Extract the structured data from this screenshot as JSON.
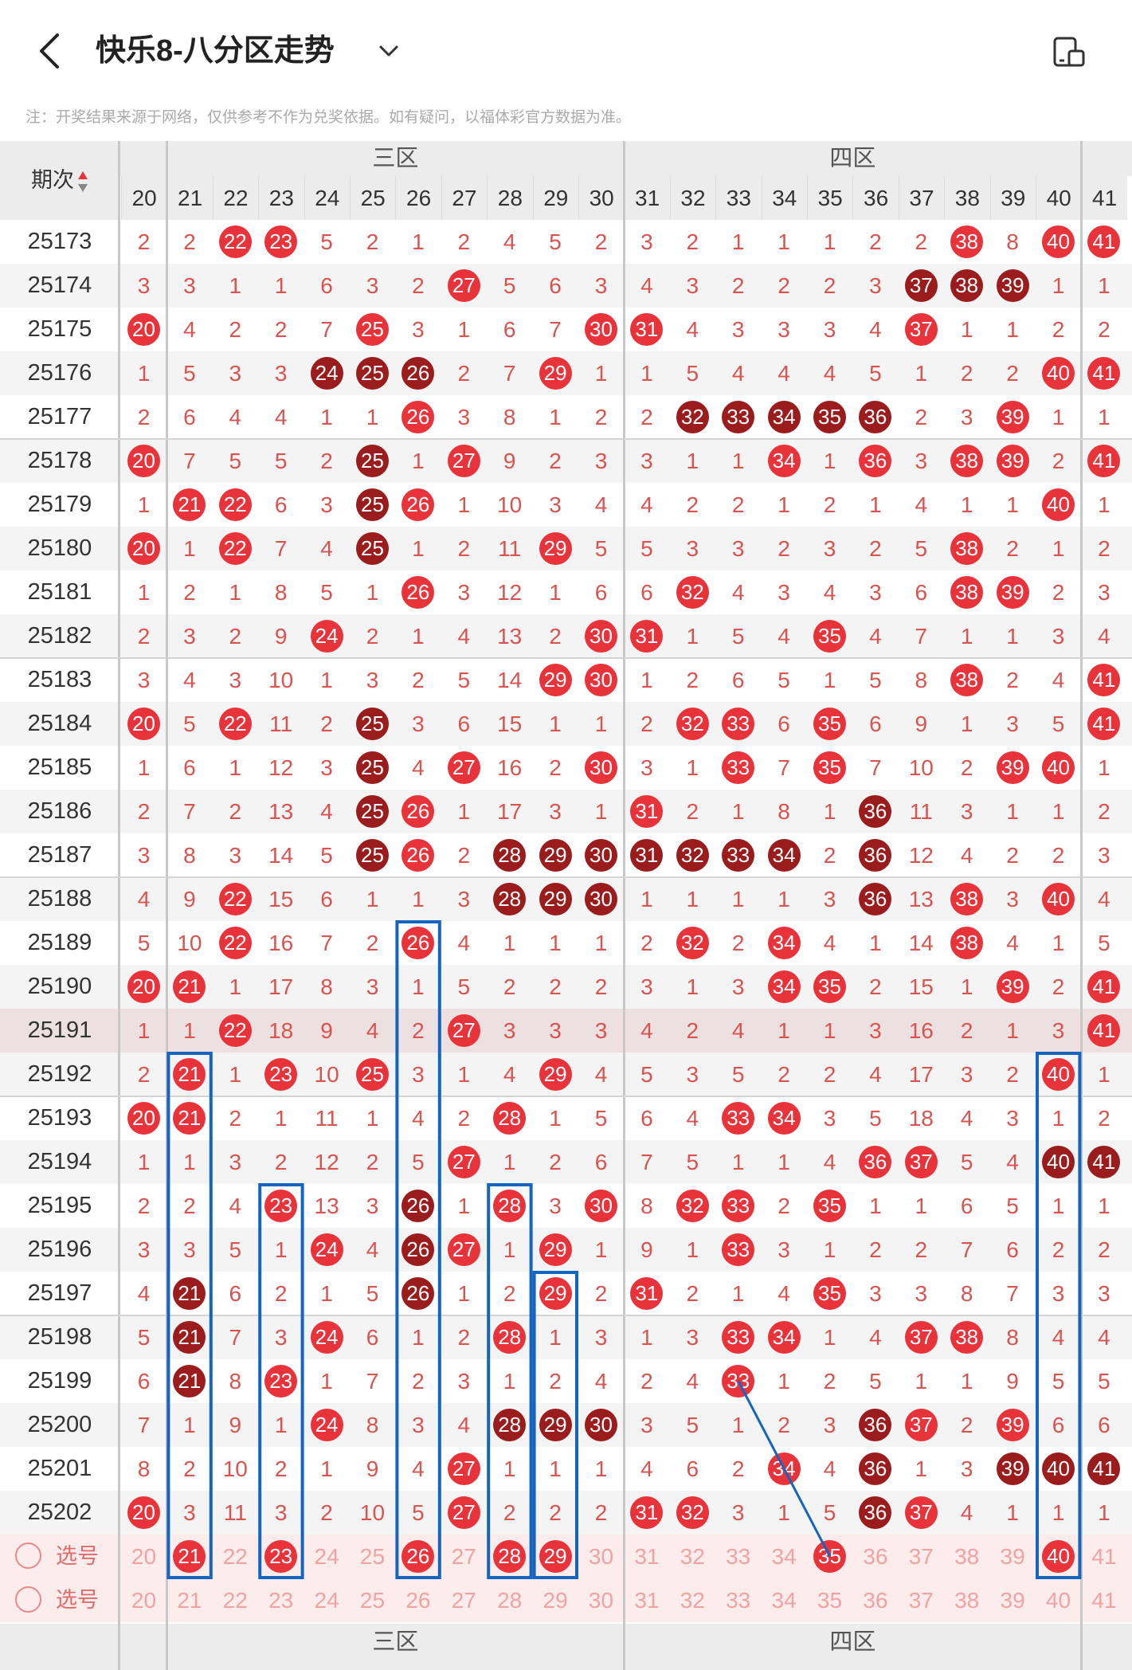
{
  "header": {
    "title": "快乐8-八分区走势",
    "back_icon": "back-arrow-icon",
    "dropdown_icon": "chevron-down-icon",
    "device_icon": "device-layout-icon"
  },
  "note": "注：开奖结果来源于网络，仅供参考不作为兑奖依据。如有疑问，以福体彩官方数据为准。",
  "table": {
    "issue_header": "期次",
    "zones": [
      {
        "name": "三区",
        "from": 21,
        "to": 30
      },
      {
        "name": "四区",
        "from": 31,
        "to": 40
      }
    ],
    "columns": [
      20,
      21,
      22,
      23,
      24,
      25,
      26,
      27,
      28,
      29,
      30,
      31,
      32,
      33,
      34,
      35,
      36,
      37,
      38,
      39,
      40,
      41
    ],
    "rows": [
      {
        "issue": "25173",
        "c": [
          2,
          2,
          22,
          23,
          5,
          2,
          1,
          2,
          4,
          5,
          2,
          3,
          2,
          1,
          1,
          1,
          2,
          2,
          38,
          8,
          40,
          41
        ]
      },
      {
        "issue": "25174",
        "c": [
          3,
          3,
          1,
          1,
          6,
          3,
          2,
          27,
          5,
          6,
          3,
          4,
          3,
          2,
          2,
          2,
          3,
          37,
          38,
          39,
          1,
          1
        ]
      },
      {
        "issue": "25175",
        "c": [
          20,
          4,
          2,
          2,
          7,
          25,
          3,
          1,
          6,
          7,
          30,
          31,
          4,
          3,
          3,
          3,
          4,
          37,
          1,
          1,
          2,
          2
        ]
      },
      {
        "issue": "25176",
        "c": [
          1,
          5,
          3,
          3,
          24,
          25,
          26,
          2,
          7,
          29,
          1,
          1,
          5,
          4,
          4,
          4,
          5,
          1,
          2,
          2,
          40,
          41
        ]
      },
      {
        "issue": "25177",
        "c": [
          2,
          6,
          4,
          4,
          1,
          1,
          26,
          3,
          8,
          1,
          2,
          2,
          32,
          33,
          34,
          35,
          36,
          2,
          3,
          39,
          1,
          1
        ]
      },
      {
        "issue": "25178",
        "c": [
          20,
          7,
          5,
          5,
          2,
          25,
          1,
          27,
          9,
          2,
          3,
          3,
          1,
          1,
          34,
          1,
          36,
          3,
          38,
          39,
          2,
          41
        ]
      },
      {
        "issue": "25179",
        "c": [
          1,
          21,
          22,
          6,
          3,
          25,
          26,
          1,
          10,
          3,
          4,
          4,
          2,
          2,
          1,
          2,
          1,
          4,
          1,
          1,
          40,
          1
        ]
      },
      {
        "issue": "25180",
        "c": [
          20,
          1,
          22,
          7,
          4,
          25,
          1,
          2,
          11,
          29,
          5,
          5,
          3,
          3,
          2,
          3,
          2,
          5,
          38,
          2,
          1,
          2
        ]
      },
      {
        "issue": "25181",
        "c": [
          1,
          2,
          1,
          8,
          5,
          1,
          26,
          3,
          12,
          1,
          6,
          6,
          32,
          4,
          3,
          4,
          3,
          6,
          38,
          39,
          2,
          3
        ]
      },
      {
        "issue": "25182",
        "c": [
          2,
          3,
          2,
          9,
          24,
          2,
          1,
          4,
          13,
          2,
          30,
          31,
          1,
          5,
          4,
          35,
          4,
          7,
          1,
          1,
          3,
          4
        ]
      },
      {
        "issue": "25183",
        "c": [
          3,
          4,
          3,
          10,
          1,
          3,
          2,
          5,
          14,
          29,
          30,
          1,
          2,
          6,
          5,
          1,
          5,
          8,
          38,
          2,
          4,
          41
        ]
      },
      {
        "issue": "25184",
        "c": [
          20,
          5,
          22,
          11,
          2,
          25,
          3,
          6,
          15,
          1,
          1,
          2,
          32,
          33,
          6,
          35,
          6,
          9,
          1,
          3,
          5,
          41
        ]
      },
      {
        "issue": "25185",
        "c": [
          1,
          6,
          1,
          12,
          3,
          25,
          4,
          27,
          16,
          2,
          30,
          3,
          1,
          33,
          7,
          35,
          7,
          10,
          2,
          39,
          40,
          1
        ]
      },
      {
        "issue": "25186",
        "c": [
          2,
          7,
          2,
          13,
          4,
          25,
          26,
          1,
          17,
          3,
          1,
          31,
          2,
          1,
          8,
          1,
          36,
          11,
          3,
          1,
          1,
          2
        ]
      },
      {
        "issue": "25187",
        "c": [
          3,
          8,
          3,
          14,
          5,
          25,
          26,
          2,
          28,
          29,
          30,
          31,
          32,
          33,
          34,
          2,
          36,
          12,
          4,
          2,
          2,
          3
        ]
      },
      {
        "issue": "25188",
        "c": [
          4,
          9,
          22,
          15,
          6,
          1,
          1,
          3,
          28,
          29,
          30,
          1,
          1,
          1,
          1,
          3,
          36,
          13,
          38,
          3,
          40,
          4
        ]
      },
      {
        "issue": "25189",
        "c": [
          5,
          10,
          22,
          16,
          7,
          2,
          26,
          4,
          1,
          1,
          1,
          2,
          32,
          2,
          34,
          4,
          1,
          14,
          38,
          4,
          1,
          5
        ]
      },
      {
        "issue": "25190",
        "c": [
          20,
          21,
          1,
          17,
          8,
          3,
          1,
          5,
          2,
          2,
          2,
          3,
          1,
          3,
          34,
          35,
          2,
          15,
          1,
          39,
          2,
          41
        ]
      },
      {
        "issue": "25191",
        "c": [
          1,
          1,
          22,
          18,
          9,
          4,
          2,
          27,
          3,
          3,
          3,
          4,
          2,
          4,
          1,
          1,
          3,
          16,
          2,
          1,
          3,
          41
        ]
      },
      {
        "issue": "25192",
        "c": [
          2,
          21,
          1,
          23,
          10,
          25,
          3,
          1,
          4,
          29,
          4,
          5,
          3,
          5,
          2,
          2,
          4,
          17,
          3,
          2,
          40,
          1
        ]
      },
      {
        "issue": "25193",
        "c": [
          20,
          21,
          2,
          1,
          11,
          1,
          4,
          2,
          28,
          1,
          5,
          6,
          4,
          33,
          34,
          3,
          5,
          18,
          4,
          3,
          1,
          2
        ]
      },
      {
        "issue": "25194",
        "c": [
          1,
          1,
          3,
          2,
          12,
          2,
          5,
          27,
          1,
          2,
          6,
          7,
          5,
          1,
          1,
          4,
          36,
          37,
          5,
          4,
          40,
          41
        ]
      },
      {
        "issue": "25195",
        "c": [
          2,
          2,
          4,
          23,
          13,
          3,
          26,
          1,
          28,
          3,
          30,
          8,
          32,
          33,
          2,
          35,
          1,
          1,
          6,
          5,
          1,
          1
        ]
      },
      {
        "issue": "25196",
        "c": [
          3,
          3,
          5,
          1,
          24,
          4,
          26,
          27,
          1,
          29,
          1,
          9,
          1,
          33,
          3,
          1,
          2,
          2,
          7,
          6,
          2,
          2
        ]
      },
      {
        "issue": "25197",
        "c": [
          4,
          21,
          6,
          2,
          1,
          5,
          26,
          1,
          2,
          29,
          2,
          31,
          2,
          1,
          4,
          35,
          3,
          3,
          8,
          7,
          3,
          3
        ]
      },
      {
        "issue": "25198",
        "c": [
          5,
          21,
          7,
          3,
          24,
          6,
          1,
          2,
          28,
          1,
          3,
          1,
          3,
          33,
          34,
          1,
          4,
          37,
          38,
          8,
          4,
          4
        ]
      },
      {
        "issue": "25199",
        "c": [
          6,
          21,
          8,
          23,
          1,
          7,
          2,
          3,
          1,
          2,
          4,
          2,
          4,
          33,
          1,
          2,
          5,
          1,
          1,
          9,
          5,
          5
        ]
      },
      {
        "issue": "25200",
        "c": [
          7,
          1,
          9,
          1,
          24,
          8,
          3,
          4,
          28,
          29,
          30,
          3,
          5,
          1,
          2,
          3,
          36,
          37,
          2,
          39,
          6,
          6
        ]
      },
      {
        "issue": "25201",
        "c": [
          8,
          2,
          10,
          2,
          1,
          9,
          4,
          27,
          1,
          1,
          1,
          4,
          6,
          2,
          34,
          4,
          36,
          1,
          3,
          39,
          40,
          41
        ]
      },
      {
        "issue": "25202",
        "c": [
          20,
          3,
          11,
          3,
          2,
          10,
          5,
          27,
          2,
          2,
          2,
          31,
          32,
          3,
          1,
          5,
          36,
          37,
          4,
          1,
          1,
          1
        ]
      }
    ],
    "dark_balls": {
      "25174": [
        37,
        38,
        39
      ],
      "25176": [
        24,
        25,
        26
      ],
      "25177": [
        32,
        33,
        34,
        35,
        36
      ],
      "25178": [
        25
      ],
      "25179": [
        25
      ],
      "25180": [
        25
      ],
      "25184": [
        25
      ],
      "25185": [
        25
      ],
      "25186": [
        25,
        36
      ],
      "25187": [
        25,
        28,
        29,
        30,
        31,
        32,
        33,
        34,
        36
      ],
      "25188": [
        28,
        29,
        30,
        36
      ],
      "25194": [
        40,
        41
      ],
      "25195": [
        26
      ],
      "25196": [
        26
      ],
      "25197": [
        21,
        26
      ],
      "25198": [
        21
      ],
      "25199": [
        21
      ],
      "25200": [
        28,
        29,
        30,
        36
      ],
      "25201": [
        36,
        39,
        40,
        41
      ],
      "25202": [
        36
      ]
    },
    "select_rows": [
      {
        "label": "选号",
        "selected": [
          21,
          23,
          26,
          28,
          29,
          35,
          40
        ]
      },
      {
        "label": "选号",
        "selected": []
      }
    ]
  },
  "colors": {
    "ball_red": "#e8333b",
    "ball_dark": "#9a1c1c",
    "number_text": "#d9534f",
    "highlight_box": "#1565c0"
  }
}
